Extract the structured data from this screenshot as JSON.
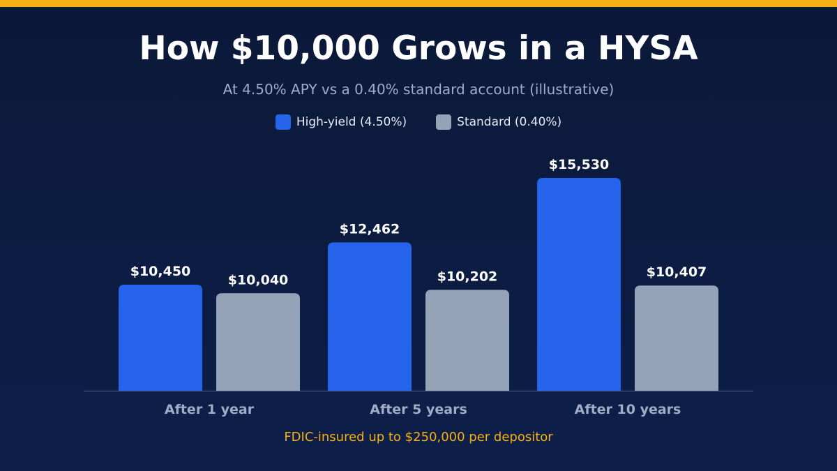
{
  "title": "How $10,000 Grows in a HYSA",
  "subtitle": "At 4.50% APY vs a 0.40% standard account (illustrative)",
  "footnote": "FDIC-insured up to $250,000 per depositor",
  "colors": {
    "accent_bar": "#f5b014",
    "high_yield": "#2563eb",
    "standard": "#94a3b8",
    "footnote": "#f5b014"
  },
  "chart_data": {
    "type": "bar",
    "title": "How $10,000 Grows in a HYSA",
    "subtitle": "At 4.50% APY vs a 0.40% standard account (illustrative)",
    "categories": [
      "After 1 year",
      "After 5 years",
      "After 10 years"
    ],
    "series": [
      {
        "name": "High-yield (4.50%)",
        "values": [
          10450,
          12462,
          15530
        ],
        "labels": [
          "$10,450",
          "$12,462",
          "$15,530"
        ],
        "color": "#2563eb"
      },
      {
        "name": "Standard (0.40%)",
        "values": [
          10040,
          10202,
          10407
        ],
        "labels": [
          "$10,040",
          "$10,202",
          "$10,407"
        ],
        "color": "#94a3b8"
      }
    ],
    "ylim": [
      0,
      15530
    ],
    "grid": false,
    "legend_position": "top-center",
    "xlabel": "",
    "ylabel": ""
  }
}
